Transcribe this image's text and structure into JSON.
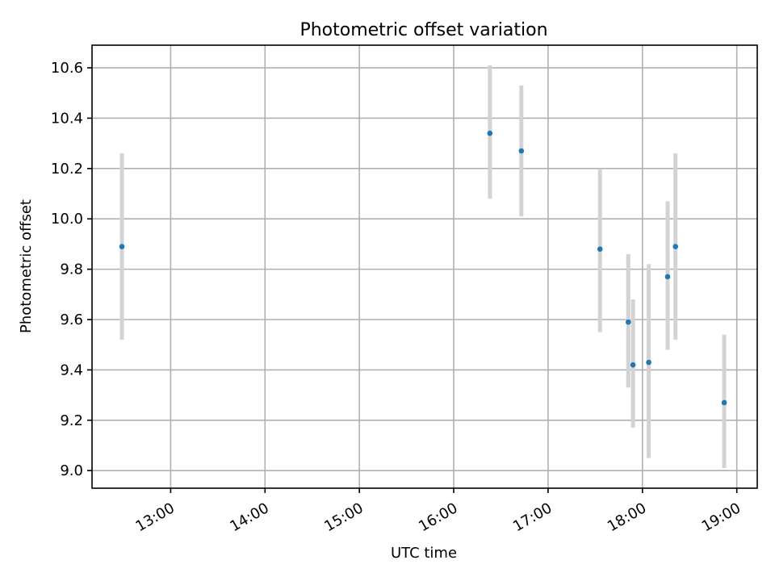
{
  "chart_data": {
    "type": "scatter",
    "title": "Photometric offset variation",
    "xlabel": "UTC time",
    "ylabel": "Photometric offset",
    "x_ticks": [
      "13:00",
      "14:00",
      "15:00",
      "16:00",
      "17:00",
      "18:00",
      "19:00"
    ],
    "y_ticks": [
      "9.0",
      "9.2",
      "9.4",
      "9.6",
      "9.8",
      "10.0",
      "10.2",
      "10.4",
      "10.6"
    ],
    "xlim": [
      "12:10",
      "19:13"
    ],
    "ylim": [
      8.93,
      10.69
    ],
    "grid": true,
    "marker_color": "#1f77b4",
    "errorbar_color": "#d3d3d3",
    "points": [
      {
        "time": "12:29",
        "y": 9.89,
        "yerr_low": 9.52,
        "yerr_high": 10.26
      },
      {
        "time": "16:23",
        "y": 10.34,
        "yerr_low": 10.08,
        "yerr_high": 10.61
      },
      {
        "time": "16:43",
        "y": 10.27,
        "yerr_low": 10.01,
        "yerr_high": 10.53
      },
      {
        "time": "17:33",
        "y": 9.88,
        "yerr_low": 9.55,
        "yerr_high": 10.2
      },
      {
        "time": "17:51",
        "y": 9.59,
        "yerr_low": 9.33,
        "yerr_high": 9.86
      },
      {
        "time": "17:54",
        "y": 9.42,
        "yerr_low": 9.17,
        "yerr_high": 9.68
      },
      {
        "time": "18:04",
        "y": 9.43,
        "yerr_low": 9.05,
        "yerr_high": 9.82
      },
      {
        "time": "18:16",
        "y": 9.77,
        "yerr_low": 9.48,
        "yerr_high": 10.07
      },
      {
        "time": "18:21",
        "y": 9.89,
        "yerr_low": 9.52,
        "yerr_high": 10.26
      },
      {
        "time": "18:52",
        "y": 9.27,
        "yerr_low": 9.01,
        "yerr_high": 9.54
      }
    ]
  }
}
